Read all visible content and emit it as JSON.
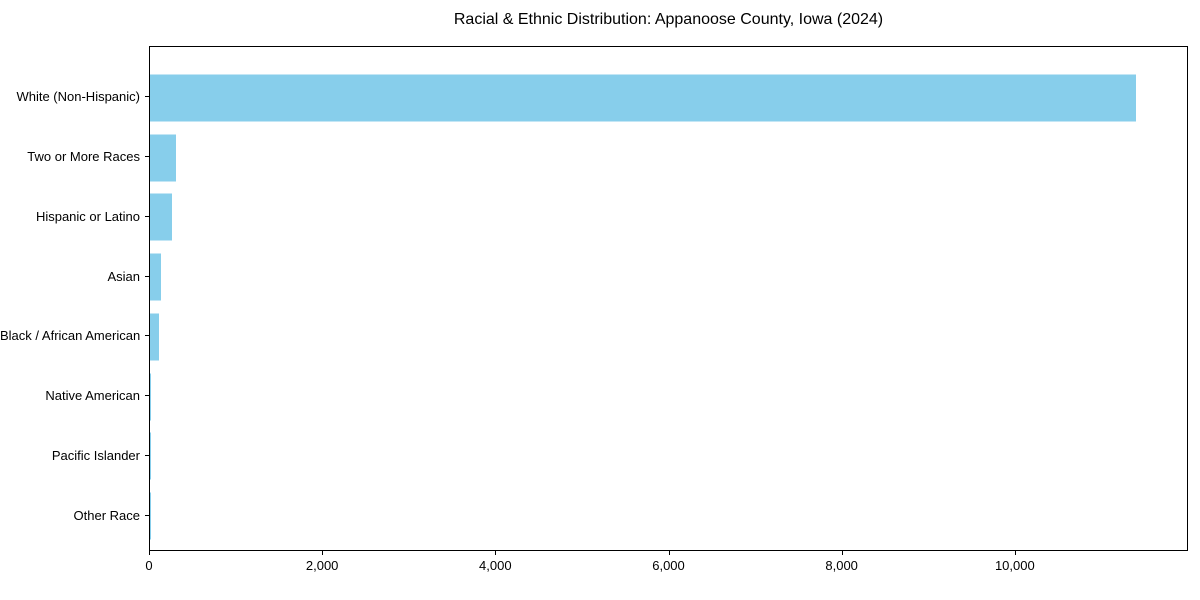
{
  "chart_data": {
    "type": "bar",
    "orientation": "horizontal",
    "title": "Racial & Ethnic Distribution: Appanoose County, Iowa (2024)",
    "categories": [
      "White (Non-Hispanic)",
      "Two or More Races",
      "Hispanic or Latino",
      "Asian",
      "Black / African American",
      "Native American",
      "Pacific Islander",
      "Other Race"
    ],
    "values": [
      11410,
      300,
      250,
      125,
      105,
      12,
      4,
      8
    ],
    "xlabel": "",
    "ylabel": "",
    "xlim": [
      0,
      12000
    ],
    "x_ticks": [
      0,
      2000,
      4000,
      6000,
      8000,
      10000
    ],
    "x_tick_labels": [
      "0",
      "2,000",
      "4,000",
      "6,000",
      "8,000",
      "10,000"
    ],
    "bar_color": "#87CEEB",
    "axis_color": "#000000",
    "text_color": "#000000",
    "grid": false,
    "legend": null,
    "background": "#ffffff"
  }
}
